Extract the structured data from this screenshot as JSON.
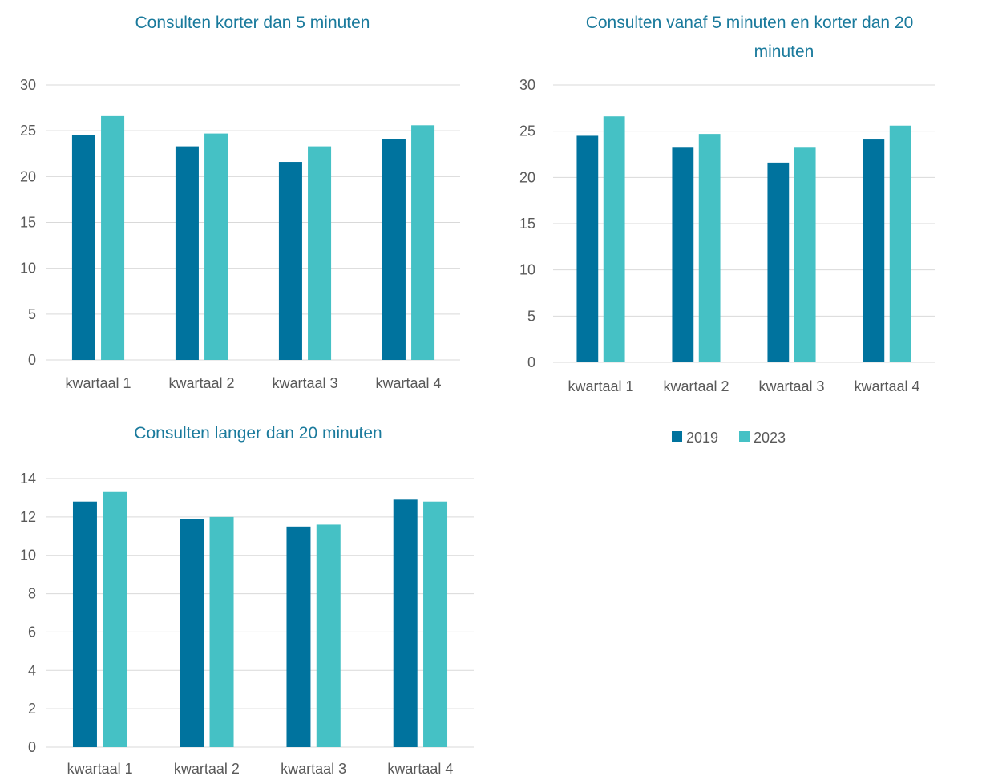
{
  "colors": {
    "2019": "#00739e",
    "2023": "#45c1c5",
    "title": "#1a7a9c",
    "text": "#595959",
    "grid": "#d9d9d9"
  },
  "legend": [
    {
      "name": "2019",
      "color": "#00739e"
    },
    {
      "name": "2023",
      "color": "#45c1c5"
    }
  ],
  "chart_data": [
    {
      "type": "bar",
      "title": "Consulten korter dan 5 minuten",
      "categories": [
        "kwartaal 1",
        "kwartaal 2",
        "kwartaal 3",
        "kwartaal 4"
      ],
      "series": [
        {
          "name": "2019",
          "values": [
            24.5,
            23.3,
            21.6,
            24.1
          ]
        },
        {
          "name": "2023",
          "values": [
            26.6,
            24.7,
            23.3,
            25.6
          ]
        }
      ],
      "ylim": [
        0,
        30
      ],
      "yticks": [
        0,
        5,
        10,
        15,
        20,
        25,
        30
      ],
      "grid": true
    },
    {
      "type": "bar",
      "title_lines": [
        "Consulten vanaf 5 minuten en korter dan 20",
        "minuten"
      ],
      "categories": [
        "kwartaal 1",
        "kwartaal 2",
        "kwartaal 3",
        "kwartaal 4"
      ],
      "series": [
        {
          "name": "2019",
          "values": [
            24.5,
            23.3,
            21.6,
            24.1
          ]
        },
        {
          "name": "2023",
          "values": [
            26.6,
            24.7,
            23.3,
            25.6
          ]
        }
      ],
      "ylim": [
        0,
        30
      ],
      "yticks": [
        0,
        5,
        10,
        15,
        20,
        25,
        30
      ],
      "grid": true,
      "legend_position": "bottom"
    },
    {
      "type": "bar",
      "title": "Consulten langer dan 20 minuten",
      "categories": [
        "kwartaal 1",
        "kwartaal 2",
        "kwartaal 3",
        "kwartaal 4"
      ],
      "series": [
        {
          "name": "2019",
          "values": [
            12.8,
            11.9,
            11.5,
            12.9
          ]
        },
        {
          "name": "2023",
          "values": [
            13.3,
            12.0,
            11.6,
            12.8
          ]
        }
      ],
      "ylim": [
        0,
        14
      ],
      "yticks": [
        0,
        2,
        4,
        6,
        8,
        10,
        12,
        14
      ],
      "grid": true
    }
  ]
}
